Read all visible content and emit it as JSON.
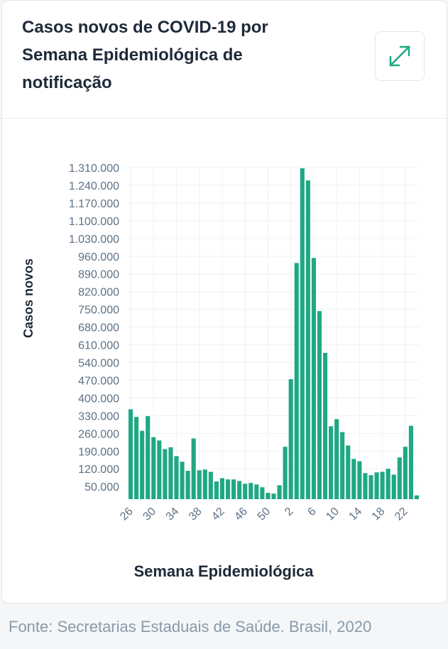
{
  "title": "Casos novos de COVID-19 por Semana Epidemiológica de notificação",
  "source": "Fonte: Secretarias Estaduais de Saúde. Brasil, 2020",
  "chart_data": {
    "type": "bar",
    "y_label": "Casos novos",
    "x_label": "Semana Epidemiológica",
    "color": "#1fa883",
    "grid": true,
    "categories": [
      "26",
      null,
      null,
      null,
      "30",
      null,
      null,
      null,
      "34",
      null,
      null,
      null,
      "38",
      null,
      null,
      null,
      "42",
      null,
      null,
      null,
      "46",
      null,
      null,
      null,
      "50",
      null,
      null,
      null,
      "2",
      null,
      null,
      null,
      "6",
      null,
      null,
      null,
      "10",
      null,
      null,
      null,
      "14",
      null,
      null,
      null,
      "18",
      null,
      null,
      null,
      "22",
      null,
      null
    ],
    "values": [
      355000,
      325000,
      270000,
      328000,
      245000,
      232000,
      198000,
      205000,
      170000,
      148000,
      112000,
      240000,
      114000,
      117000,
      108000,
      70000,
      83000,
      78000,
      78000,
      72000,
      61000,
      64000,
      58000,
      47000,
      25000,
      22000,
      55000,
      207000,
      474000,
      933000,
      1307000,
      1259000,
      953000,
      743000,
      578000,
      288000,
      316000,
      265000,
      212000,
      159000,
      150000,
      103000,
      95000,
      106000,
      108000,
      120000,
      97000,
      165000,
      207000,
      290000,
      15000
    ],
    "ylim": [
      0,
      1310000
    ],
    "yticks": [
      {
        "value": 50000,
        "label": "50.000"
      },
      {
        "value": 120000,
        "label": "120.000"
      },
      {
        "value": 190000,
        "label": "190.000"
      },
      {
        "value": 260000,
        "label": "260.000"
      },
      {
        "value": 330000,
        "label": "330.000"
      },
      {
        "value": 400000,
        "label": "400.000"
      },
      {
        "value": 470000,
        "label": "470.000"
      },
      {
        "value": 540000,
        "label": "540.000"
      },
      {
        "value": 610000,
        "label": "610.000"
      },
      {
        "value": 680000,
        "label": "680.000"
      },
      {
        "value": 750000,
        "label": "750.000"
      },
      {
        "value": 820000,
        "label": "820.000"
      },
      {
        "value": 890000,
        "label": "890.000"
      },
      {
        "value": 960000,
        "label": "960.000"
      },
      {
        "value": 1030000,
        "label": "1.030.000"
      },
      {
        "value": 1100000,
        "label": "1.100.000"
      },
      {
        "value": 1170000,
        "label": "1.170.000"
      },
      {
        "value": 1240000,
        "label": "1.240.000"
      },
      {
        "value": 1310000,
        "label": "1.310.000"
      }
    ]
  }
}
